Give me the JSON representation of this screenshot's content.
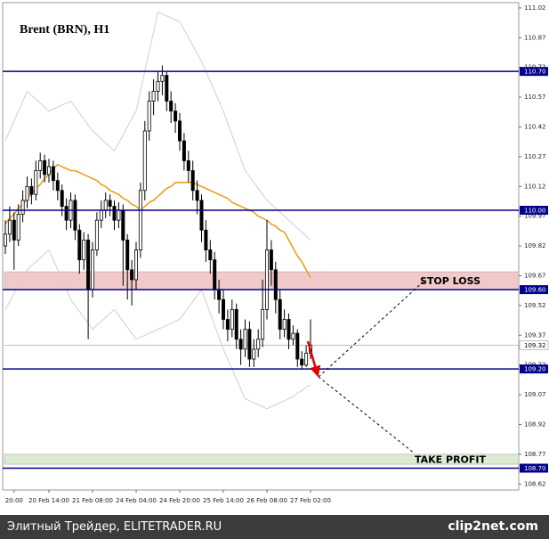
{
  "chart_data": {
    "type": "candlestick",
    "title": "Brent (BRN), H1",
    "categories": [
      null,
      null,
      "20:00",
      null,
      null,
      null,
      null,
      null,
      null,
      null,
      "20 Feb 14:00",
      null,
      null,
      null,
      null,
      null,
      null,
      null,
      null,
      null,
      "21 Feb 08:00",
      null,
      null,
      null,
      null,
      null,
      null,
      null,
      null,
      null,
      "24 Feb 04:00",
      null,
      null,
      null,
      null,
      null,
      null,
      null,
      null,
      null,
      "24 Feb 20:00",
      null,
      null,
      null,
      null,
      null,
      null,
      null,
      null,
      null,
      "25 Feb 14:00",
      null,
      null,
      null,
      null,
      null,
      null,
      null,
      null,
      null,
      "26 Feb 08:00",
      null,
      null,
      null,
      null,
      null,
      null,
      null,
      null,
      null,
      "27 Feb 02:00"
    ],
    "open": [
      109.82,
      109.88,
      109.95,
      109.85,
      109.98,
      110.05,
      110.12,
      110.08,
      110.2,
      110.25,
      110.18,
      110.22,
      110.15,
      110.1,
      110.02,
      109.95,
      110.05,
      109.9,
      109.75,
      109.85,
      109.6,
      109.8,
      109.95,
      110.0,
      110.05,
      110.02,
      109.95,
      110.0,
      109.85,
      109.7,
      109.65,
      109.8,
      110.1,
      110.4,
      110.55,
      110.6,
      110.65,
      110.68,
      110.55,
      110.5,
      110.45,
      110.35,
      110.25,
      110.2,
      110.1,
      110.05,
      109.9,
      109.8,
      109.75,
      109.6,
      109.55,
      109.45,
      109.4,
      109.5,
      109.35,
      109.3,
      109.4,
      109.25,
      109.3,
      109.35,
      109.5,
      109.8,
      109.7,
      109.55,
      109.4,
      109.45,
      109.35,
      109.38,
      109.25,
      109.22,
      109.28
    ],
    "high": [
      109.95,
      110.02,
      109.99,
      110.03,
      110.1,
      110.17,
      110.16,
      110.25,
      110.29,
      110.28,
      110.26,
      110.25,
      110.19,
      110.13,
      110.06,
      110.09,
      110.08,
      109.93,
      109.89,
      109.88,
      109.84,
      109.99,
      110.05,
      110.09,
      110.08,
      110.05,
      110.04,
      110.03,
      109.88,
      109.75,
      109.84,
      110.14,
      110.45,
      110.6,
      110.66,
      110.7,
      110.73,
      110.7,
      110.6,
      110.54,
      110.49,
      110.39,
      110.3,
      110.25,
      110.15,
      110.08,
      109.95,
      109.85,
      109.79,
      109.65,
      109.6,
      109.5,
      109.55,
      109.53,
      109.4,
      109.45,
      109.44,
      109.35,
      109.4,
      109.65,
      109.95,
      109.85,
      109.74,
      109.6,
      109.5,
      109.48,
      109.42,
      109.4,
      109.29,
      109.32,
      109.45
    ],
    "low": [
      109.78,
      109.84,
      109.7,
      109.82,
      109.94,
      110.01,
      110.03,
      110.05,
      110.16,
      110.14,
      110.14,
      110.1,
      110.05,
      109.97,
      109.9,
      109.91,
      109.85,
      109.68,
      109.7,
      109.35,
      109.56,
      109.77,
      109.91,
      109.96,
      109.97,
      109.9,
      109.91,
      109.62,
      109.55,
      109.52,
      109.6,
      109.76,
      110.05,
      110.35,
      110.48,
      110.55,
      110.58,
      110.5,
      110.44,
      110.39,
      110.3,
      110.2,
      110.14,
      110.05,
      109.98,
      109.84,
      109.74,
      109.68,
      109.55,
      109.48,
      109.4,
      109.34,
      109.36,
      109.3,
      109.22,
      109.26,
      109.21,
      109.21,
      109.26,
      109.31,
      109.45,
      109.62,
      109.48,
      109.35,
      109.36,
      109.3,
      109.32,
      109.21,
      109.2,
      109.21,
      109.25
    ],
    "close": [
      109.88,
      109.95,
      109.85,
      109.98,
      110.05,
      110.12,
      110.08,
      110.2,
      110.25,
      110.18,
      110.22,
      110.15,
      110.1,
      110.02,
      109.95,
      110.05,
      109.9,
      109.75,
      109.85,
      109.6,
      109.8,
      109.95,
      110.0,
      110.05,
      110.02,
      109.95,
      110.0,
      109.85,
      109.7,
      109.65,
      109.8,
      110.1,
      110.4,
      110.55,
      110.6,
      110.65,
      110.68,
      110.55,
      110.5,
      110.45,
      110.35,
      110.25,
      110.2,
      110.1,
      110.05,
      109.9,
      109.8,
      109.75,
      109.6,
      109.55,
      109.45,
      109.4,
      109.5,
      109.35,
      109.3,
      109.4,
      109.25,
      109.3,
      109.35,
      109.5,
      109.8,
      109.7,
      109.55,
      109.4,
      109.45,
      109.35,
      109.38,
      109.25,
      109.22,
      109.28,
      109.32
    ],
    "overlays": [
      {
        "color": "#e8a020",
        "values": [
          109.93,
          109.96,
          109.98,
          110.01,
          110.03,
          110.06,
          110.08,
          110.11,
          110.13,
          110.16,
          110.18,
          110.21,
          110.23,
          110.22,
          110.21,
          110.2,
          110.2,
          110.19,
          110.18,
          110.17,
          110.16,
          110.15,
          110.13,
          110.12,
          110.1,
          110.09,
          110.08,
          110.06,
          110.05,
          110.03,
          110.02,
          110.0,
          110.02,
          110.04,
          110.05,
          110.07,
          110.09,
          110.11,
          110.12,
          110.14,
          110.14,
          110.14,
          110.14,
          110.14,
          110.13,
          110.12,
          110.11,
          110.1,
          110.09,
          110.08,
          110.07,
          110.06,
          110.04,
          110.03,
          110.02,
          110.01,
          110.0,
          109.99,
          109.97,
          109.96,
          109.95,
          109.93,
          109.92,
          109.9,
          109.89,
          109.85,
          109.81,
          109.77,
          109.74,
          109.7,
          109.66
        ]
      },
      {
        "color": "#cfcfcf",
        "values": [
          110.35,
          110.4,
          110.45,
          110.5,
          110.55,
          110.6,
          110.58,
          110.56,
          110.54,
          110.52,
          110.5,
          110.51,
          110.52,
          110.53,
          110.54,
          110.55,
          110.52,
          110.49,
          110.46,
          110.43,
          110.4,
          110.38,
          110.36,
          110.34,
          110.32,
          110.3,
          110.34,
          110.38,
          110.42,
          110.46,
          110.5,
          110.6,
          110.7,
          110.8,
          110.9,
          111.0,
          110.99,
          110.98,
          110.97,
          110.96,
          110.95,
          110.91,
          110.87,
          110.83,
          110.79,
          110.75,
          110.7,
          110.65,
          110.6,
          110.55,
          110.5,
          110.44,
          110.38,
          110.32,
          110.26,
          110.2,
          110.17,
          110.14,
          110.11,
          110.08,
          110.05,
          110.03,
          110.01,
          109.99,
          109.97,
          109.95,
          109.93,
          109.91,
          109.89,
          109.87,
          109.85
        ]
      },
      {
        "color": "#cfcfcf",
        "values": [
          109.5,
          109.54,
          109.58,
          109.62,
          109.66,
          109.7,
          109.72,
          109.74,
          109.76,
          109.78,
          109.8,
          109.75,
          109.7,
          109.65,
          109.6,
          109.55,
          109.52,
          109.49,
          109.46,
          109.43,
          109.4,
          109.42,
          109.44,
          109.46,
          109.48,
          109.5,
          109.47,
          109.44,
          109.41,
          109.38,
          109.35,
          109.36,
          109.37,
          109.38,
          109.39,
          109.4,
          109.41,
          109.42,
          109.43,
          109.44,
          109.45,
          109.48,
          109.51,
          109.54,
          109.57,
          109.6,
          109.54,
          109.48,
          109.42,
          109.36,
          109.3,
          109.25,
          109.2,
          109.15,
          109.1,
          109.05,
          109.04,
          109.03,
          109.02,
          109.01,
          109.0,
          109.01,
          109.02,
          109.03,
          109.04,
          109.05,
          109.06,
          109.08,
          109.09,
          109.11,
          109.12
        ]
      }
    ],
    "ylim": [
      108.59,
      111.06
    ],
    "yticks": [
      111.02,
      110.87,
      110.72,
      110.57,
      110.42,
      110.27,
      110.12,
      109.97,
      109.82,
      109.67,
      109.52,
      109.37,
      109.22,
      109.07,
      108.92,
      108.77,
      108.62
    ],
    "levels": [
      {
        "value": 110.7,
        "label": "110.70"
      },
      {
        "value": 110.0,
        "label": "110.00"
      },
      {
        "value": 109.6,
        "label": "109.60"
      },
      {
        "value": 109.2,
        "label": "109.20"
      },
      {
        "value": 108.7,
        "label": "108.70"
      }
    ],
    "level_color": "#00008b",
    "current_price": {
      "value": 109.32,
      "label": "109.32"
    },
    "zones": [
      {
        "name": "STOP LOSS",
        "range": [
          109.6,
          109.69
        ],
        "color": "#f2c9c9"
      },
      {
        "name": "TAKE PROFIT",
        "range": [
          108.72,
          108.77
        ],
        "color": "#dcebd2"
      }
    ]
  },
  "footer": {
    "text": "Элитный Трейдер, ELITETRADER.RU",
    "watermark": "clip2net.com"
  }
}
